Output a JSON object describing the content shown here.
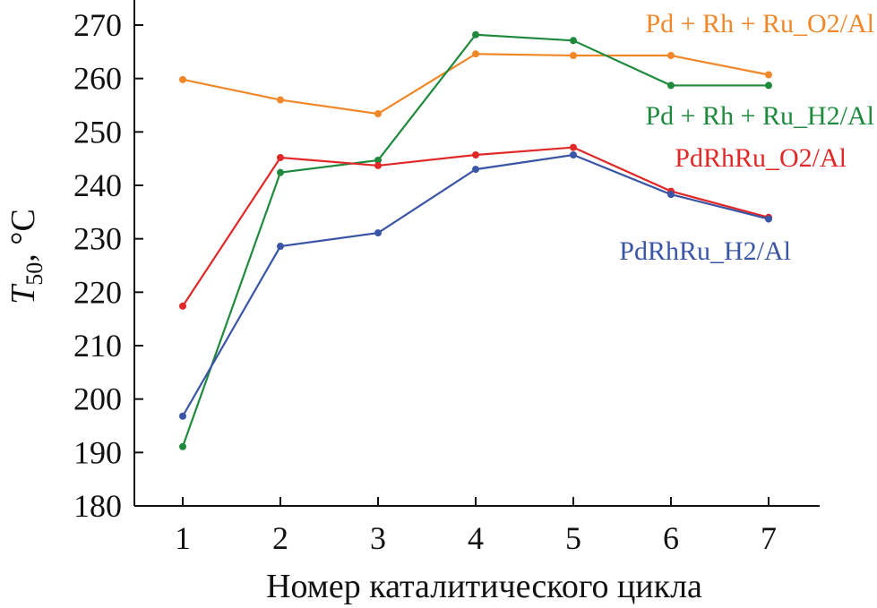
{
  "chart_data": {
    "type": "line",
    "xlabel": "Номер каталитического цикла",
    "ylabel": {
      "symbol": "T",
      "subscript": "50",
      "unit": ", °C"
    },
    "x": [
      1,
      2,
      3,
      4,
      5,
      6,
      7
    ],
    "ylim": [
      180,
      270
    ],
    "yticks": [
      180,
      190,
      200,
      210,
      220,
      230,
      240,
      250,
      260,
      270
    ],
    "grid": false,
    "legend": "inline labels near each series",
    "series": [
      {
        "name": "Pd + Rh + Ru_O2/Al",
        "color": "#f0882a",
        "values": [
          259.8,
          256.0,
          253.4,
          264.6,
          264.3,
          264.3,
          260.7
        ]
      },
      {
        "name": "Pd + Rh + Ru_H2/Al",
        "color": "#1f8a3e",
        "values": [
          191.1,
          242.4,
          244.7,
          268.2,
          267.1,
          258.7,
          258.7
        ]
      },
      {
        "name": "PdRhRu_O2/Al",
        "color": "#e02828",
        "values": [
          217.4,
          245.2,
          243.7,
          245.7,
          247.1,
          238.9,
          234.0
        ]
      },
      {
        "name": "PdRhRu_H2/Al",
        "color": "#3a55a6",
        "values": [
          196.8,
          228.6,
          231.1,
          243.0,
          245.7,
          238.3,
          233.7
        ]
      }
    ]
  }
}
